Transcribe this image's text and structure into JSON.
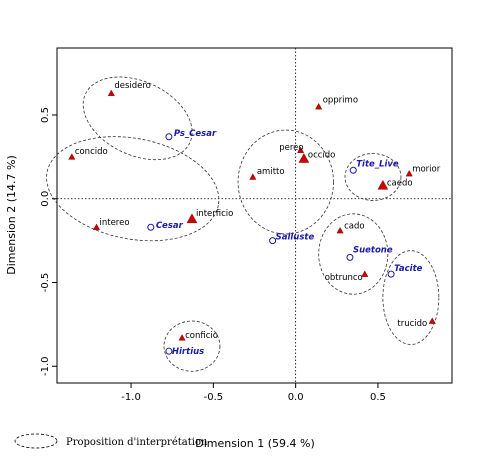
{
  "chart_data": {
    "type": "scatter",
    "xlabel": "Dimension 1 (59.4 %)",
    "ylabel": "Dimension 2 (14.7 %)",
    "xlim": [
      -1.45,
      0.95
    ],
    "ylim": [
      -1.1,
      0.9
    ],
    "x_ticks": [
      "-1.0",
      "-0.5",
      "0.0",
      "0.5"
    ],
    "y_ticks": [
      "-1.0",
      "-0.5",
      "0.0",
      "0.5"
    ],
    "x_tick_values": [
      -1.0,
      -0.5,
      0.0,
      0.5
    ],
    "y_tick_values": [
      -1.0,
      -0.5,
      0.0,
      0.5
    ],
    "grid": false,
    "reference_lines": {
      "x": 0,
      "y": 0,
      "style": "dotted"
    },
    "word_points": [
      {
        "label": "desidero",
        "x": -1.12,
        "y": 0.63
      },
      {
        "label": "concido",
        "x": -1.36,
        "y": 0.25
      },
      {
        "label": "intereo",
        "x": -1.21,
        "y": -0.17
      },
      {
        "label": "interficio",
        "x": -0.63,
        "y": -0.12
      },
      {
        "label": "conficio",
        "x": -0.69,
        "y": -0.83
      },
      {
        "label": "opprimo",
        "x": 0.14,
        "y": 0.55
      },
      {
        "label": "pereo",
        "x": 0.03,
        "y": 0.29
      },
      {
        "label": "occido",
        "x": 0.05,
        "y": 0.24
      },
      {
        "label": "amitto",
        "x": -0.26,
        "y": 0.13
      },
      {
        "label": "morior",
        "x": 0.69,
        "y": 0.15
      },
      {
        "label": "caedo",
        "x": 0.53,
        "y": 0.08
      },
      {
        "label": "cado",
        "x": 0.27,
        "y": -0.19
      },
      {
        "label": "obtrunco",
        "x": 0.42,
        "y": -0.45
      },
      {
        "label": "trucido",
        "x": 0.83,
        "y": -0.73
      }
    ],
    "author_points": [
      {
        "label": "Ps_Cesar",
        "x": -0.77,
        "y": 0.37
      },
      {
        "label": "Cesar",
        "x": -0.88,
        "y": -0.17
      },
      {
        "label": "Hirtius",
        "x": -0.77,
        "y": -0.91
      },
      {
        "label": "Tite_Live",
        "x": 0.35,
        "y": 0.17
      },
      {
        "label": "Salluste",
        "x": -0.14,
        "y": -0.25
      },
      {
        "label": "Suetone",
        "x": 0.33,
        "y": -0.35
      },
      {
        "label": "Tacite",
        "x": 0.58,
        "y": -0.45
      }
    ],
    "ellipses": [
      {
        "cx": -0.96,
        "cy": 0.48,
        "rx": 0.35,
        "ry": 0.22,
        "angle": -25
      },
      {
        "cx": -0.99,
        "cy": 0.06,
        "rx": 0.53,
        "ry": 0.3,
        "angle": -11
      },
      {
        "cx": -0.63,
        "cy": -0.88,
        "rx": 0.17,
        "ry": 0.15,
        "angle": 0
      },
      {
        "cx": -0.06,
        "cy": 0.1,
        "rx": 0.29,
        "ry": 0.31,
        "angle": 0
      },
      {
        "cx": 0.47,
        "cy": 0.13,
        "rx": 0.17,
        "ry": 0.14,
        "angle": 0
      },
      {
        "cx": 0.35,
        "cy": -0.33,
        "rx": 0.21,
        "ry": 0.24,
        "angle": 0
      },
      {
        "cx": 0.7,
        "cy": -0.59,
        "rx": 0.17,
        "ry": 0.28,
        "angle": 0
      }
    ],
    "legend": {
      "label": "Proposition d'interprétation",
      "position": "bottom-left"
    },
    "colors": {
      "word_marker": "#cc0000",
      "author_marker": "#1a1aa6",
      "author_label": "#1a1aa6"
    }
  }
}
